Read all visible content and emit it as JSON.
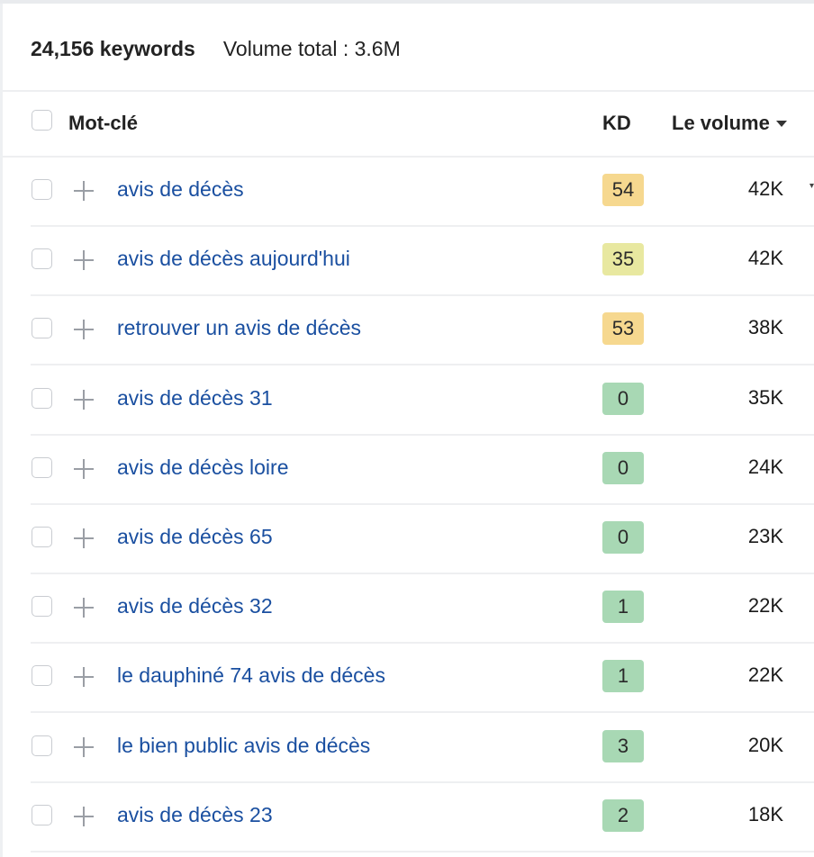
{
  "summary": {
    "keyword_count": "24,156 keywords",
    "volume_total": "Volume total : 3.6M"
  },
  "table": {
    "headers": {
      "keyword": "Mot-clé",
      "kd": "KD",
      "volume": "Le volume"
    },
    "sort": {
      "column": "volume",
      "direction": "descending"
    },
    "rows": [
      {
        "keyword": "avis de décès",
        "kd": "54",
        "volume": "42K",
        "kd_color": "#f6d88f"
      },
      {
        "keyword": "avis de décès aujourd'hui",
        "kd": "35",
        "volume": "42K",
        "kd_color": "#e8e8a0"
      },
      {
        "keyword": "retrouver un avis de décès",
        "kd": "53",
        "volume": "38K",
        "kd_color": "#f6d88f"
      },
      {
        "keyword": "avis de décès 31",
        "kd": "0",
        "volume": "35K",
        "kd_color": "#a8d8b4"
      },
      {
        "keyword": "avis de décès loire",
        "kd": "0",
        "volume": "24K",
        "kd_color": "#a8d8b4"
      },
      {
        "keyword": "avis de décès 65",
        "kd": "0",
        "volume": "23K",
        "kd_color": "#a8d8b4"
      },
      {
        "keyword": "avis de décès 32",
        "kd": "1",
        "volume": "22K",
        "kd_color": "#a8d8b4"
      },
      {
        "keyword": "le dauphiné 74 avis de décès",
        "kd": "1",
        "volume": "22K",
        "kd_color": "#a8d8b4"
      },
      {
        "keyword": "le bien public avis de décès",
        "kd": "3",
        "volume": "20K",
        "kd_color": "#a8d8b4"
      },
      {
        "keyword": "avis de décès 23",
        "kd": "2",
        "volume": "18K",
        "kd_color": "#a8d8b4"
      }
    ]
  },
  "icons": {
    "row_add": "plus-icon",
    "row_select": "checkbox",
    "sort": "caret-down-icon"
  },
  "colors": {
    "link": "#1a4fa0",
    "kd_high": "#f6d88f",
    "kd_medium": "#e8e8a0",
    "kd_low": "#a8d8b4"
  }
}
